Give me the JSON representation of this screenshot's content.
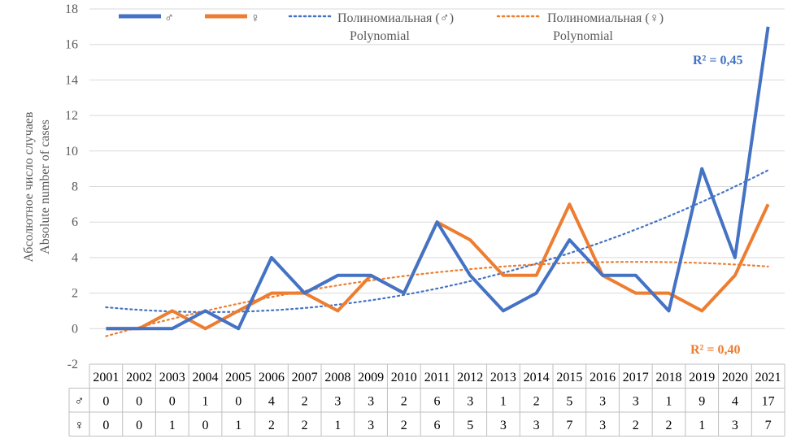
{
  "chart_data": {
    "type": "line",
    "x": [
      "2001",
      "2002",
      "2003",
      "2004",
      "2005",
      "2006",
      "2007",
      "2008",
      "2009",
      "2010",
      "2011",
      "2012",
      "2013",
      "2014",
      "2015",
      "2016",
      "2017",
      "2018",
      "2019",
      "2020",
      "2021"
    ],
    "series": [
      {
        "name": "♂",
        "color": "#4472C4",
        "values": [
          0,
          0,
          0,
          1,
          0,
          4,
          2,
          3,
          3,
          2,
          6,
          3,
          1,
          2,
          5,
          3,
          3,
          1,
          9,
          4,
          17
        ]
      },
      {
        "name": "♀",
        "color": "#ED7D31",
        "values": [
          0,
          0,
          1,
          0,
          1,
          2,
          2,
          1,
          3,
          2,
          6,
          5,
          3,
          3,
          7,
          3,
          2,
          2,
          1,
          3,
          7
        ]
      }
    ],
    "trendlines": [
      {
        "name": "Полиномиальная (♂)",
        "name_en": "Polynomial",
        "color": "#4472C4",
        "r2_label": "R² = 0,45"
      },
      {
        "name": "Полиномиальная (♀)",
        "name_en": "Polynomial",
        "color": "#ED7D31",
        "r2_label": "R² = 0,40"
      }
    ],
    "ylabel": "Абсолютное число случаев",
    "ylabel_en": "Absolute number of cases",
    "ylim": [
      -2,
      18
    ],
    "yticks": [
      -2,
      0,
      2,
      4,
      6,
      8,
      10,
      12,
      14,
      16,
      18
    ],
    "grid": "horizontal",
    "legend": "top",
    "data_table": {
      "rows": [
        {
          "label": "♂",
          "values": [
            "0",
            "0",
            "0",
            "1",
            "0",
            "4",
            "2",
            "3",
            "3",
            "2",
            "6",
            "3",
            "1",
            "2",
            "5",
            "3",
            "3",
            "1",
            "9",
            "4",
            "17"
          ]
        },
        {
          "label": "♀",
          "values": [
            "0",
            "0",
            "1",
            "0",
            "1",
            "2",
            "2",
            "1",
            "3",
            "2",
            "6",
            "5",
            "3",
            "3",
            "7",
            "3",
            "2",
            "2",
            "1",
            "3",
            "7"
          ]
        }
      ]
    }
  }
}
